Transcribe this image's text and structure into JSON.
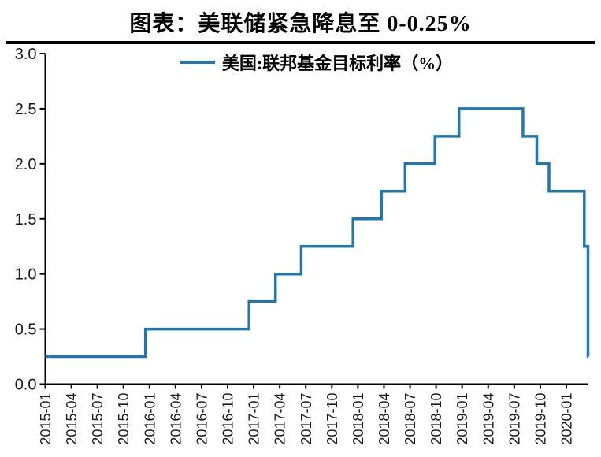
{
  "header": {
    "title": "图表：美联储紧急降息至 0-0.25%"
  },
  "legend": {
    "label": "美国:联邦基金目标利率（%）"
  },
  "chart_data": {
    "type": "line",
    "subtype": "step-post",
    "title": "图表：美联储紧急降息至 0-0.25%",
    "grid": false,
    "legend_position": "top-center",
    "ylim": [
      0.0,
      3.0
    ],
    "x_range": [
      "2015-01",
      "2020-03"
    ],
    "y_tick_labels": [
      "0.0",
      "0.5",
      "1.0",
      "1.5",
      "2.0",
      "2.5",
      "3.0"
    ],
    "x_tick_labels": [
      "2015-01",
      "2015-04",
      "2015-07",
      "2015-10",
      "2016-01",
      "2016-04",
      "2016-07",
      "2016-10",
      "2017-01",
      "2017-04",
      "2017-07",
      "2017-10",
      "2018-01",
      "2018-04",
      "2018-07",
      "2018-10",
      "2019-01",
      "2019-04",
      "2019-07",
      "2019-10",
      "2020-01"
    ],
    "axis_color": "#000000",
    "tick_label_color": "#1a1a1a",
    "series": [
      {
        "name": "美国:联邦基金目标利率（%）",
        "unit": "%",
        "color": "#1F77B4",
        "rate_changes": [
          {
            "date": "2015-01-01",
            "rate": 0.25
          },
          {
            "date": "2015-12-17",
            "rate": 0.5
          },
          {
            "date": "2016-12-15",
            "rate": 0.75
          },
          {
            "date": "2017-03-16",
            "rate": 1.0
          },
          {
            "date": "2017-06-15",
            "rate": 1.25
          },
          {
            "date": "2017-12-14",
            "rate": 1.5
          },
          {
            "date": "2018-03-22",
            "rate": 1.75
          },
          {
            "date": "2018-06-14",
            "rate": 2.0
          },
          {
            "date": "2018-09-27",
            "rate": 2.25
          },
          {
            "date": "2018-12-20",
            "rate": 2.5
          },
          {
            "date": "2019-08-01",
            "rate": 2.25
          },
          {
            "date": "2019-09-19",
            "rate": 2.0
          },
          {
            "date": "2019-10-31",
            "rate": 1.75
          },
          {
            "date": "2020-03-03",
            "rate": 1.25
          },
          {
            "date": "2020-03-16",
            "rate": 0.25
          }
        ]
      }
    ]
  }
}
